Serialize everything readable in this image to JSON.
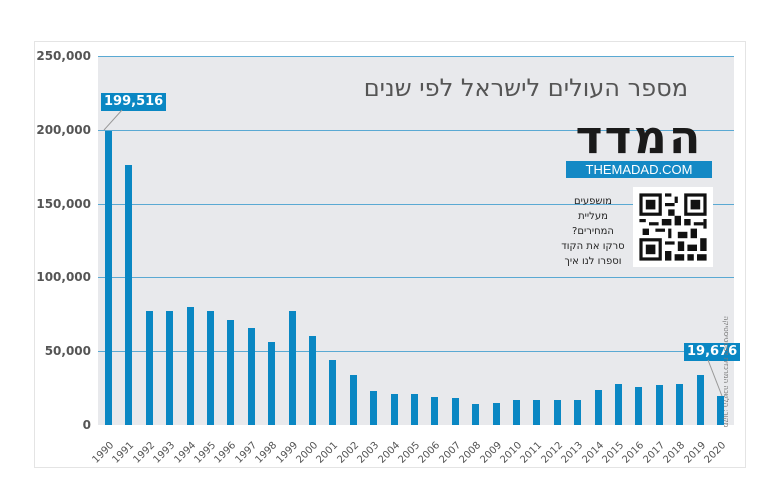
{
  "chart_data": {
    "type": "bar",
    "title": "מספר העולים לישראל לפי שנים",
    "xlabel": "",
    "ylabel": "",
    "ylim": [
      0,
      250000
    ],
    "yticks": [
      "250,000",
      "200,000",
      "150,000",
      "100,000",
      "50,000",
      "0"
    ],
    "grid": true,
    "categories": [
      "1990",
      "1991",
      "1992",
      "1993",
      "1994",
      "1995",
      "1996",
      "1997",
      "1998",
      "1999",
      "2000",
      "2001",
      "2002",
      "2003",
      "2004",
      "2005",
      "2006",
      "2007",
      "2008",
      "2009",
      "2010",
      "2011",
      "2012",
      "2013",
      "2014",
      "2015",
      "2016",
      "2017",
      "2018",
      "2019",
      "2020"
    ],
    "values": [
      199516,
      176000,
      77000,
      77000,
      80000,
      77000,
      71000,
      66000,
      56000,
      77000,
      60000,
      44000,
      34000,
      23000,
      21000,
      21000,
      19000,
      18000,
      14000,
      15000,
      17000,
      17000,
      17000,
      17000,
      24000,
      28000,
      26000,
      27000,
      28000,
      34000,
      19676
    ],
    "annotations": [
      {
        "category": "1990",
        "label": "199,516"
      },
      {
        "category": "2020",
        "label": "19,676"
      }
    ],
    "bar_color": "#0a87c3"
  },
  "branding": {
    "logo": "המדד",
    "url": "THEMADAD.COM",
    "cta_lines": [
      "מושפעים",
      "מעליית",
      "המחירים?",
      "סרקו את הקוד",
      "וספרו לנו איך"
    ],
    "qr_icon": "qr-code-icon"
  },
  "source": "מקור: הלשכה המרכזית לסטטיסטיקה"
}
